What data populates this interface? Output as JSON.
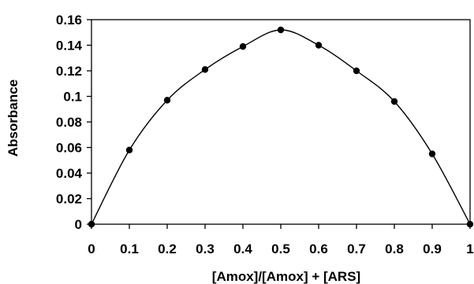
{
  "chart_data": {
    "type": "line",
    "title": "",
    "xlabel": "[Amox]/[Amox] + [ARS]",
    "ylabel": "Absorbance",
    "xlim": [
      0,
      1
    ],
    "ylim": [
      0,
      0.16
    ],
    "xticks": [
      0,
      0.1,
      0.2,
      0.3,
      0.4,
      0.5,
      0.6,
      0.7,
      0.8,
      0.9,
      1
    ],
    "yticks": [
      0,
      0.02,
      0.04,
      0.06,
      0.08,
      0.1,
      0.12,
      0.14,
      0.16
    ],
    "xtick_labels": [
      "0",
      "0.1",
      "0.2",
      "0.3",
      "0.4",
      "0.5",
      "0.6",
      "0.7",
      "0.8",
      "0.9",
      "1"
    ],
    "ytick_labels": [
      "0",
      "0.02",
      "0.04",
      "0.06",
      "0.08",
      "0.1",
      "0.12",
      "0.14",
      "0.16"
    ],
    "grid": false,
    "legend": "none",
    "series": [
      {
        "x": [
          0,
          0.1,
          0.2,
          0.3,
          0.4,
          0.5,
          0.6,
          0.7,
          0.8,
          0.9,
          1
        ],
        "y": [
          0,
          0.058,
          0.097,
          0.121,
          0.139,
          0.152,
          0.14,
          0.12,
          0.096,
          0.055,
          0
        ],
        "color": "#000000"
      }
    ]
  }
}
